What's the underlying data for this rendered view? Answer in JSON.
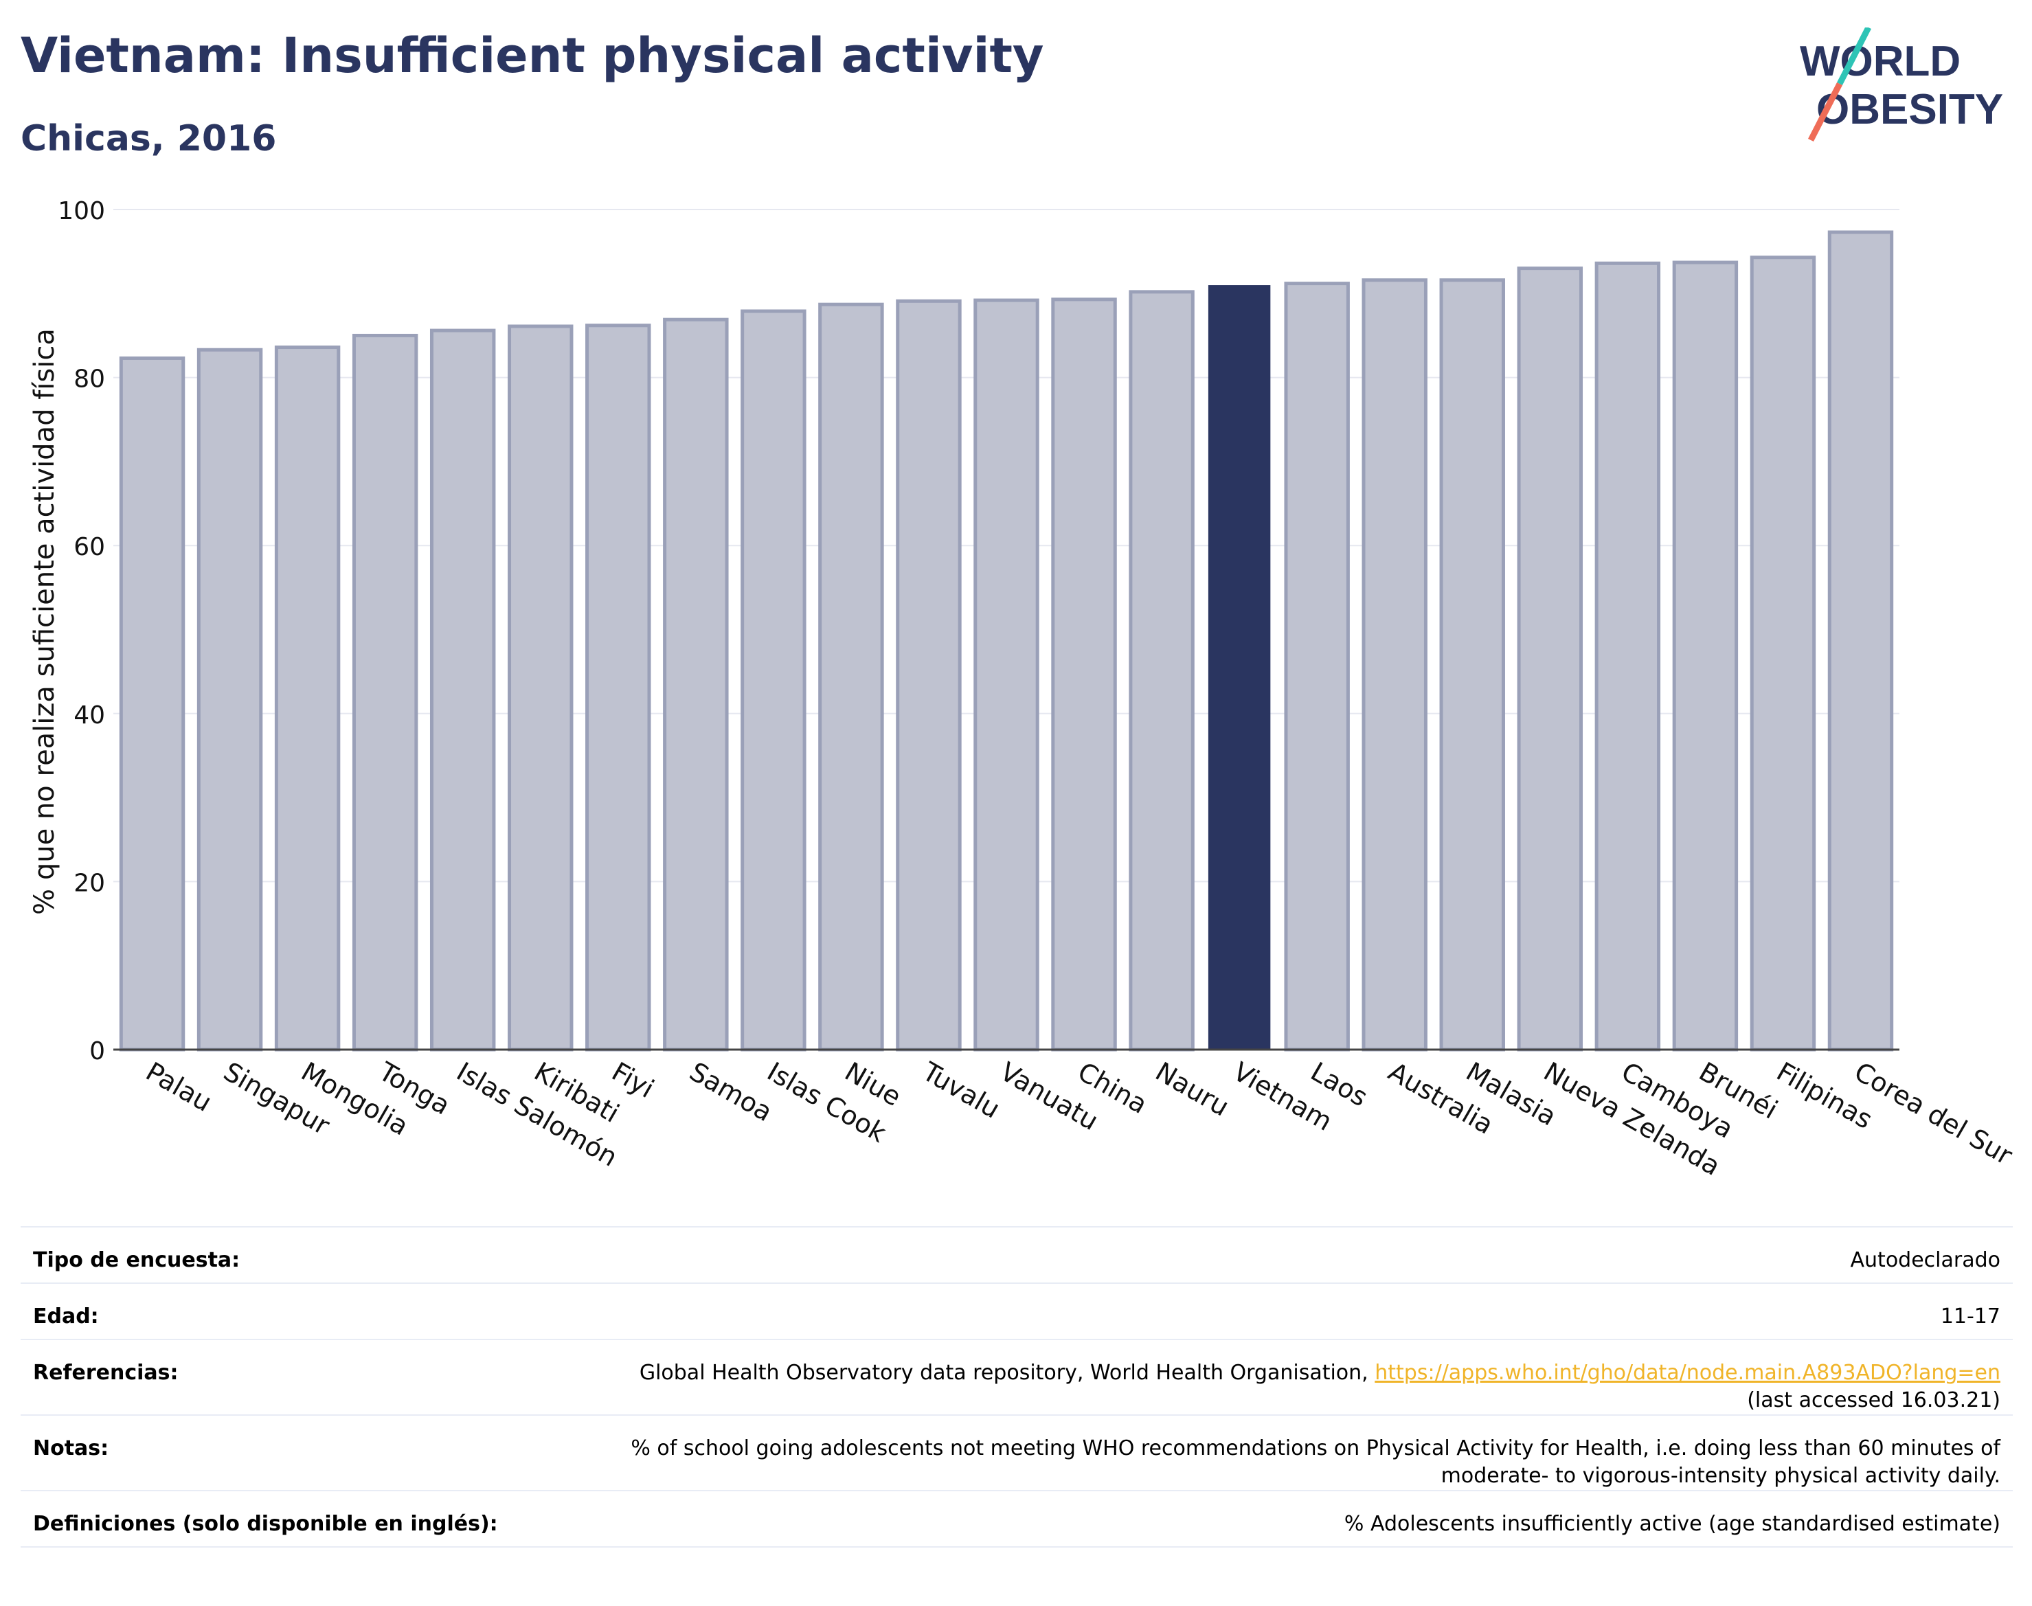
{
  "header": {
    "title": "Vietnam: Insufficient physical activity",
    "subtitle": "Chicas, 2016",
    "logo_line1": "WORLD",
    "logo_line2": "OBESITY"
  },
  "colors": {
    "title": "#2a3560",
    "highlight_bar": "#2a3560",
    "other_bar": "#bfc2d0",
    "other_bar_border": "#9aa0b8",
    "link": "#f0b429",
    "logo_teal": "#2ec4b6",
    "logo_red": "#ef6c57"
  },
  "chart_data": {
    "type": "bar",
    "ylabel": "% que no realiza suficiente actividad física",
    "xlabel": "",
    "ylim": [
      0,
      100
    ],
    "yticks": [
      0,
      20,
      40,
      60,
      80,
      100
    ],
    "grid": true,
    "highlight": "Vietnam",
    "categories": [
      "Palau",
      "Singapur",
      "Mongolia",
      "Tonga",
      "Islas Salomón",
      "Kiribati",
      "Fiyi",
      "Samoa",
      "Islas Cook",
      "Niue",
      "Tuvalu",
      "Vanuatu",
      "China",
      "Nauru",
      "Vietnam",
      "Laos",
      "Australia",
      "Malasia",
      "Nueva Zelanda",
      "Camboya",
      "Brunéi",
      "Filipinas",
      "Corea del Sur"
    ],
    "values": [
      82.3,
      83.3,
      83.6,
      85.0,
      85.6,
      86.1,
      86.2,
      86.9,
      87.9,
      88.7,
      89.1,
      89.2,
      89.3,
      90.2,
      91.0,
      91.2,
      91.6,
      91.6,
      93.0,
      93.6,
      93.7,
      94.3,
      97.3
    ]
  },
  "info": {
    "survey_label": "Tipo de encuesta:",
    "survey_value": "Autodeclarado",
    "age_label": "Edad:",
    "age_value": "11-17",
    "refs_label": "Referencias:",
    "refs_text": "Global Health Observatory data repository, World Health Organisation,",
    "refs_link": "https://apps.who.int/gho/data/node.main.A893ADO?lang=en",
    "refs_accessed": "(last accessed 16.03.21)",
    "notes_label": "Notas:",
    "notes_line1": "% of school going adolescents not meeting WHO recommendations on Physical Activity for Health, i.e. doing less than 60 minutes of",
    "notes_line2": "moderate- to vigorous-intensity physical activity daily.",
    "defs_label": "Definiciones (solo disponible en inglés):",
    "defs_value": "% Adolescents insufficiently active (age standardised estimate)"
  }
}
